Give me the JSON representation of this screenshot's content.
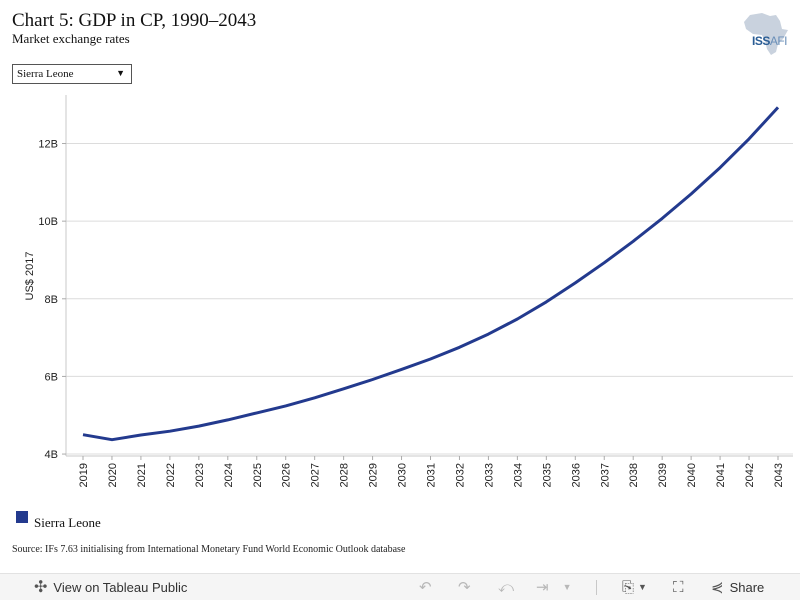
{
  "header": {
    "title": "Chart 5: GDP in CP, 1990–2043",
    "subtitle": "Market exchange rates"
  },
  "logo": {
    "text_main": "ISS",
    "text_sub": "AFI"
  },
  "filter": {
    "selected": "Sierra Leone"
  },
  "chart_data": {
    "type": "line",
    "title": "Chart 5: GDP in CP, 1990–2043",
    "subtitle": "Market exchange rates",
    "xlabel": "",
    "ylabel": "US$ 2017",
    "x": [
      2019,
      2020,
      2021,
      2022,
      2023,
      2024,
      2025,
      2026,
      2027,
      2028,
      2029,
      2030,
      2031,
      2032,
      2033,
      2034,
      2035,
      2036,
      2037,
      2038,
      2039,
      2040,
      2041,
      2042,
      2043
    ],
    "x_tick_labels": [
      "2019",
      "2020",
      "2021",
      "2022",
      "2023",
      "2024",
      "2025",
      "2026",
      "2027",
      "2028",
      "2029",
      "2030",
      "2031",
      "2032",
      "2033",
      "2034",
      "2035",
      "2036",
      "2037",
      "2038",
      "2039",
      "2040",
      "2041",
      "2042",
      "2043"
    ],
    "series": [
      {
        "name": "Sierra Leone",
        "color": "#233a8e",
        "values": [
          4.5,
          4.37,
          4.49,
          4.59,
          4.72,
          4.88,
          5.06,
          5.24,
          5.45,
          5.68,
          5.92,
          6.18,
          6.45,
          6.75,
          7.09,
          7.48,
          7.92,
          8.41,
          8.93,
          9.48,
          10.07,
          10.7,
          11.38,
          12.12,
          12.93
        ]
      }
    ],
    "y_ticks": [
      4,
      6,
      8,
      10,
      12
    ],
    "y_tick_labels": [
      "4B",
      "6B",
      "8B",
      "10B",
      "12B"
    ],
    "ylim": [
      3.95,
      13.25
    ],
    "grid": true,
    "legend": {
      "position": "bottom-left",
      "entries": [
        "Sierra Leone"
      ]
    }
  },
  "source": "Source: IFs 7.63 initialising from International Monetary Fund World Economic Outlook database",
  "toolbar": {
    "view_label": "View on Tableau Public",
    "share_label": "Share",
    "icons": [
      "tableau-logo-icon",
      "undo-icon",
      "redo-icon",
      "revert-icon",
      "refresh-icon",
      "download-icon",
      "fullscreen-icon",
      "share-icon"
    ]
  }
}
